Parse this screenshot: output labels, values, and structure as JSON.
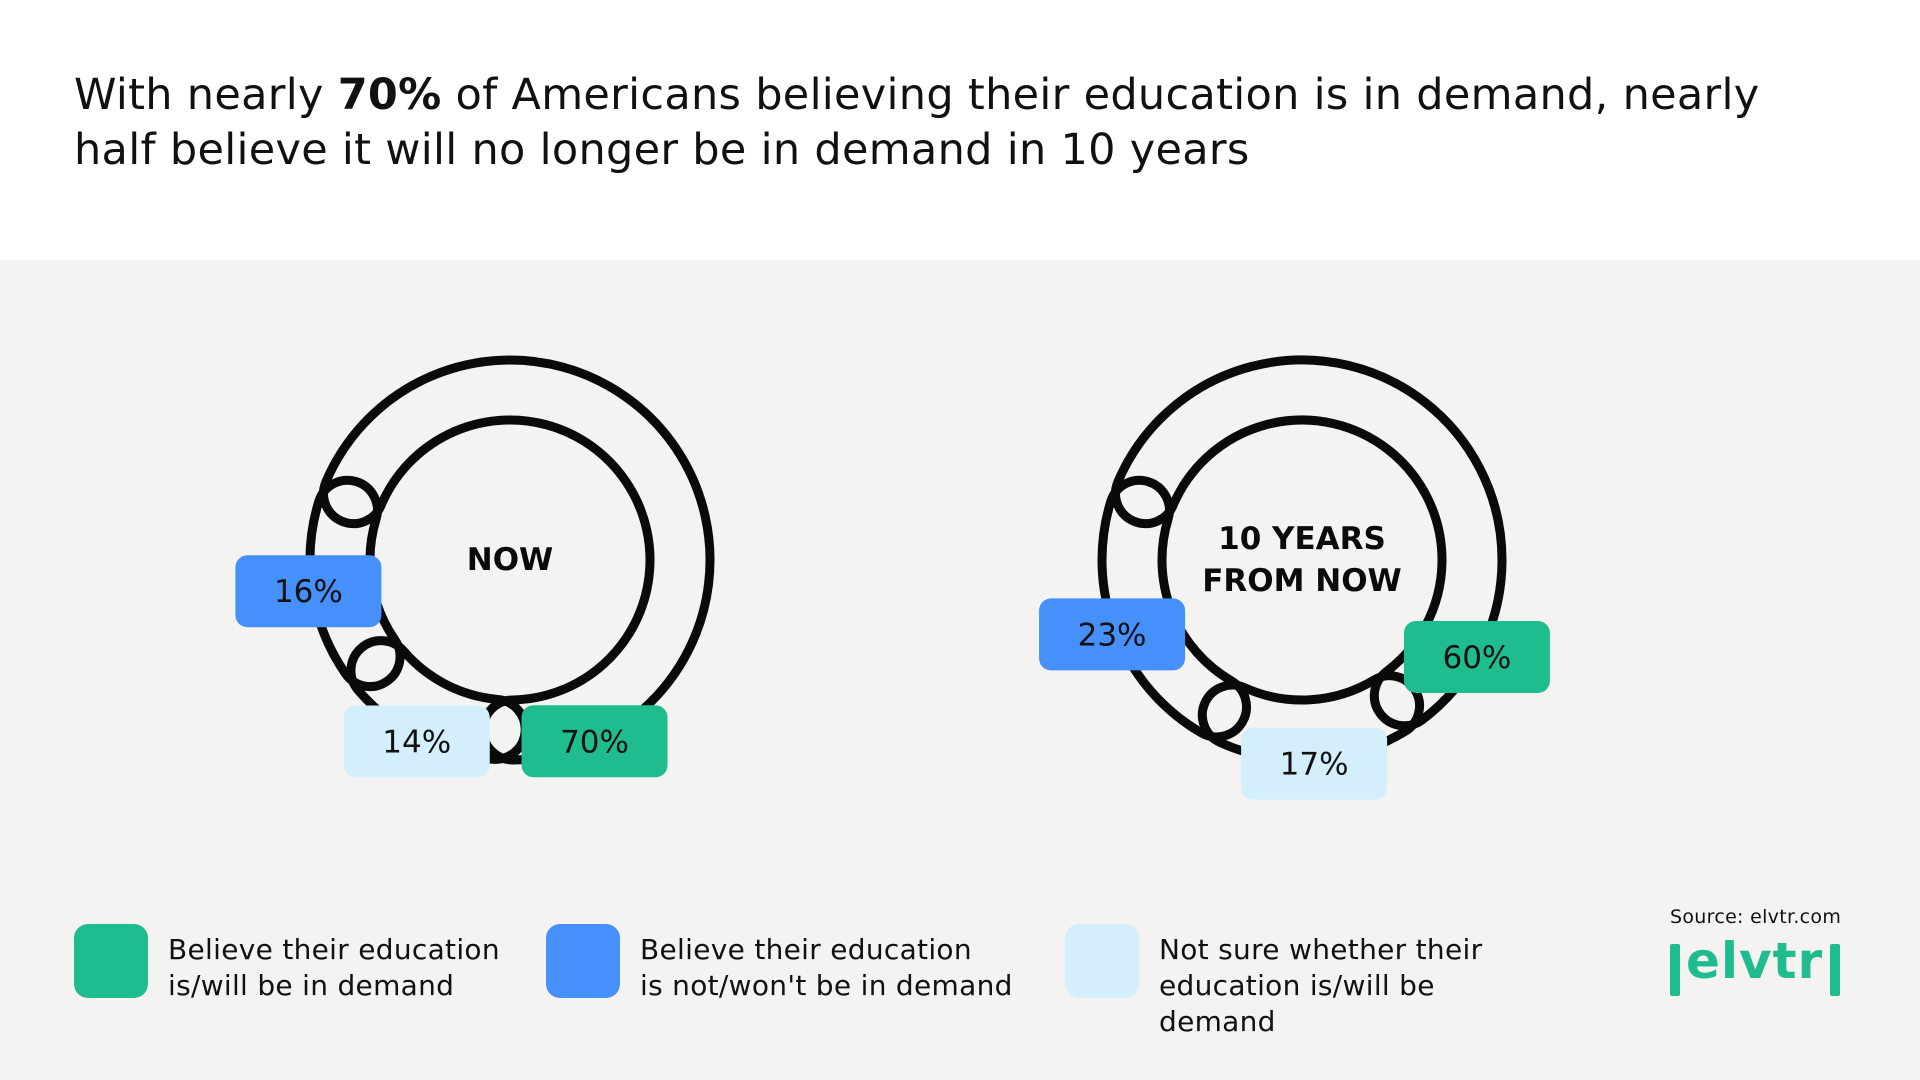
{
  "headline": {
    "part1": "With nearly ",
    "bold": "70%",
    "part2": " of Americans believing their education is in demand, nearly half believe it will no longer be in demand in 10 years"
  },
  "chart_data": [
    {
      "type": "pie",
      "style": "donut",
      "center_label": [
        "NOW"
      ],
      "slices": [
        {
          "label": "Believe their education is/will be in demand",
          "value": 70,
          "display": "70%"
        },
        {
          "label": "Not sure whether their education is/will be demand",
          "value": 14,
          "display": "14%"
        },
        {
          "label": "Believe their education is not/won't be in demand",
          "value": 16,
          "display": "16%"
        }
      ]
    },
    {
      "type": "pie",
      "style": "donut",
      "center_label": [
        "10 YEARS",
        "FROM NOW"
      ],
      "slices": [
        {
          "label": "Believe their education is/will be in demand",
          "value": 60,
          "display": "60%"
        },
        {
          "label": "Not sure whether their education is/will be demand",
          "value": 17,
          "display": "17%"
        },
        {
          "label": "Believe their education is not/won't be in demand",
          "value": 23,
          "display": "23%"
        }
      ]
    }
  ],
  "legend": [
    {
      "text": "Believe their education\nis/will be in demand",
      "color": "#1fbc8f"
    },
    {
      "text": "Believe their education\nis not/won't be in demand",
      "color": "#4690fb"
    },
    {
      "text": "Not sure whether their\neducation is/will be demand",
      "color": "#d3effc"
    }
  ],
  "colors": {
    "in_demand": "#1fbc8f",
    "not_in_demand": "#4690fb",
    "not_sure": "#d3effc",
    "outline": "#0a0a0a",
    "panel": "#f4f3f2"
  },
  "source": "Source: elvtr.com",
  "logo": {
    "text": "elvtr",
    "icon": "elvtr-logo"
  }
}
